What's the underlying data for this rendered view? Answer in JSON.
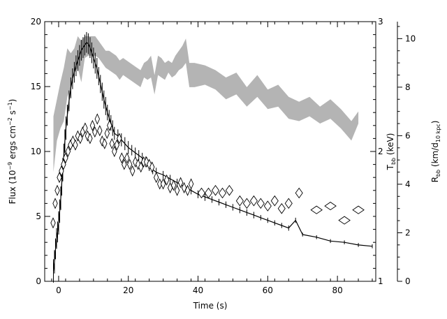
{
  "chart_data": {
    "type": "line",
    "title": "",
    "xlabel": "Time (s)",
    "ylabel": "Flux (10⁻⁹ ergs cm⁻² s⁻¹)",
    "ylabel_parts": {
      "base": "Flux (10",
      "exp1": "−9",
      "mid1": " ergs cm",
      "exp2": "−2",
      "mid2": " s",
      "exp3": "−1",
      "end": ")"
    },
    "xlim": [
      -4,
      91
    ],
    "ylim": [
      0,
      20
    ],
    "x_ticks": [
      0,
      20,
      40,
      60,
      80
    ],
    "y_ticks": [
      0,
      5,
      10,
      15,
      20
    ],
    "secondary_axes": [
      {
        "label": "T_bb (keV)",
        "label_parts": {
          "base": "T",
          "sub": "bb",
          "end": " (keV)"
        },
        "ticks": [
          1,
          2,
          3
        ],
        "range": [
          1,
          3
        ]
      },
      {
        "label": "R_bb (km/d_10 kpc)",
        "label_parts": {
          "base": "R",
          "sub": "bb",
          "mid": " (km/d",
          "sub2": "10 kpc",
          "end": ")"
        },
        "ticks": [
          0,
          2,
          4,
          6,
          8,
          10
        ],
        "range": [
          0,
          10.7
        ]
      }
    ],
    "grid": false,
    "series": [
      {
        "style": "line-with-error-bars",
        "axis": "flux",
        "x": [
          -1.5,
          -1.2,
          -0.9,
          -0.6,
          -0.3,
          0,
          0.3,
          0.6,
          0.9,
          1.2,
          1.5,
          1.8,
          2.1,
          2.5,
          3,
          3.5,
          4,
          4.5,
          5,
          5.5,
          6,
          6.5,
          7,
          7.5,
          8,
          8.5,
          9,
          9.5,
          10,
          10.5,
          11,
          11.5,
          12,
          12.5,
          13,
          13.5,
          14,
          14.5,
          15,
          15.5,
          16,
          17,
          18,
          19,
          20,
          21,
          22,
          23,
          24,
          25,
          26,
          27,
          28,
          30,
          32,
          34,
          36,
          38,
          40,
          42,
          44,
          46,
          48,
          50,
          52,
          54,
          56,
          58,
          60,
          62,
          64,
          66,
          68,
          70,
          74,
          78,
          82,
          86,
          90
        ],
        "y": [
          0.8,
          1.5,
          2.5,
          3.3,
          3.8,
          4.5,
          5.4,
          6.4,
          7.5,
          8.6,
          9.7,
          10.8,
          11.8,
          12.8,
          13.9,
          14.9,
          15.6,
          16.1,
          16.6,
          17.0,
          17.4,
          17.8,
          18.0,
          18.2,
          18.4,
          18.3,
          18.0,
          17.6,
          17.2,
          16.8,
          16.4,
          15.8,
          15.2,
          14.6,
          14.0,
          13.5,
          13.0,
          12.6,
          12.2,
          11.8,
          11.4,
          11.2,
          10.9,
          10.6,
          10.3,
          10.1,
          9.9,
          9.7,
          9.5,
          9.2,
          8.9,
          8.6,
          8.4,
          8.2,
          7.9,
          7.6,
          7.3,
          7.0,
          6.7,
          6.5,
          6.3,
          6.1,
          5.9,
          5.7,
          5.5,
          5.3,
          5.1,
          4.9,
          4.7,
          4.5,
          4.3,
          4.1,
          4.7,
          3.6,
          3.4,
          3.1,
          3.0,
          2.8,
          2.7
        ],
        "y_err": [
          0.9,
          0.9,
          0.8,
          0.8,
          0.8,
          0.9,
          0.9,
          0.9,
          0.9,
          0.9,
          0.9,
          0.9,
          0.9,
          0.8,
          0.8,
          0.8,
          0.8,
          0.8,
          0.8,
          0.8,
          0.8,
          0.8,
          0.8,
          0.8,
          0.8,
          0.8,
          0.8,
          0.8,
          0.8,
          0.8,
          0.8,
          0.7,
          0.7,
          0.7,
          0.7,
          0.7,
          0.6,
          0.6,
          0.6,
          0.6,
          0.5,
          0.5,
          0.5,
          0.5,
          0.5,
          0.4,
          0.4,
          0.4,
          0.4,
          0.4,
          0.4,
          0.35,
          0.35,
          0.3,
          0.3,
          0.3,
          0.3,
          0.3,
          0.3,
          0.3,
          0.25,
          0.25,
          0.25,
          0.25,
          0.25,
          0.25,
          0.25,
          0.2,
          0.2,
          0.2,
          0.2,
          0.2,
          0.2,
          0.15,
          0.15,
          0.15,
          0.15,
          0.15,
          0.15
        ]
      },
      {
        "style": "shaded-band",
        "axis": "R_bb",
        "color": "#b4b4b4",
        "x": [
          -1.5,
          -0.5,
          0.5,
          1.5,
          2.5,
          3.5,
          4.5,
          5.5,
          6.5,
          7.5,
          8.5,
          9.5,
          10.5,
          11.5,
          12.5,
          13.5,
          14.5,
          15.5,
          16.5,
          17.5,
          18.5,
          19.5,
          20.5,
          21.5,
          22.5,
          23.5,
          24.5,
          25.5,
          26.5,
          27.5,
          28.5,
          29.5,
          30.5,
          31.5,
          32.5,
          33.5,
          34.5,
          35.5,
          36.5,
          37.5,
          39,
          42,
          45,
          48,
          51,
          54,
          57,
          60,
          63,
          66,
          69,
          72,
          75,
          78,
          81,
          84,
          86
        ],
        "low": [
          4.5,
          5.8,
          6.3,
          6.6,
          7.6,
          8.0,
          8.6,
          8.8,
          8.2,
          9.2,
          9.3,
          9.3,
          9.3,
          9.2,
          9.0,
          8.8,
          8.7,
          8.6,
          8.5,
          8.3,
          8.5,
          8.4,
          8.3,
          8.2,
          8.1,
          8.0,
          8.4,
          8.3,
          8.4,
          7.7,
          8.5,
          8.4,
          8.3,
          8.6,
          8.4,
          8.5,
          8.7,
          8.8,
          9.0,
          8.0,
          8.0,
          8.1,
          7.9,
          7.5,
          7.7,
          7.2,
          7.6,
          7.1,
          7.2,
          6.7,
          6.6,
          6.8,
          6.5,
          6.7,
          6.3,
          5.8,
          6.5
        ],
        "high": [
          6.8,
          7.5,
          8.2,
          8.8,
          9.6,
          9.4,
          9.6,
          10.1,
          9.9,
          10.1,
          10.1,
          10.1,
          10.1,
          9.9,
          9.7,
          9.5,
          9.5,
          9.4,
          9.3,
          9.1,
          9.2,
          9.1,
          9.0,
          8.9,
          8.8,
          8.7,
          9.0,
          9.1,
          9.3,
          8.5,
          9.3,
          9.2,
          9.0,
          9.1,
          9.0,
          9.3,
          9.5,
          9.7,
          10.0,
          9.0,
          9.0,
          8.9,
          8.7,
          8.4,
          8.6,
          8.0,
          8.5,
          7.9,
          8.1,
          7.6,
          7.4,
          7.6,
          7.2,
          7.5,
          7.1,
          6.6,
          7.0
        ]
      },
      {
        "style": "open-diamonds",
        "axis": "T_bb",
        "x": [
          -1.6,
          -1.0,
          -0.4,
          0.2,
          0.8,
          1.4,
          2.0,
          2.7,
          3.4,
          4.1,
          4.8,
          5.5,
          6.2,
          6.9,
          7.6,
          8.3,
          9.0,
          9.7,
          10.4,
          11.1,
          11.8,
          12.5,
          13.2,
          13.9,
          14.6,
          15.3,
          16.0,
          16.7,
          17.4,
          18.1,
          18.8,
          19.6,
          20.4,
          21.2,
          22.0,
          22.8,
          23.6,
          24.4,
          25.2,
          26.0,
          26.8,
          28.0,
          29.0,
          30.0,
          31.0,
          32.0,
          33.0,
          34.0,
          35.0,
          36.0,
          37.0,
          38.0,
          41.0,
          43.0,
          45.0,
          47.0,
          49.0,
          52.0,
          54.0,
          56.0,
          58.0,
          60.0,
          62.0,
          64.0,
          66.0,
          69.0,
          74.0,
          78.0,
          82.0,
          86.0
        ],
        "y": [
          1.45,
          1.6,
          1.7,
          1.8,
          1.85,
          1.9,
          1.95,
          2.0,
          2.05,
          2.08,
          2.05,
          2.12,
          2.1,
          2.15,
          2.18,
          2.12,
          2.1,
          2.2,
          2.15,
          2.25,
          2.16,
          2.08,
          2.06,
          2.14,
          2.2,
          2.06,
          2.0,
          2.05,
          2.1,
          1.95,
          1.9,
          1.95,
          1.9,
          1.85,
          1.92,
          1.9,
          1.88,
          1.92,
          1.92,
          1.9,
          1.88,
          1.8,
          1.75,
          1.75,
          1.78,
          1.72,
          1.74,
          1.7,
          1.76,
          1.72,
          1.7,
          1.75,
          1.68,
          1.68,
          1.7,
          1.68,
          1.7,
          1.62,
          1.6,
          1.62,
          1.6,
          1.58,
          1.62,
          1.56,
          1.6,
          1.68,
          1.55,
          1.58,
          1.47,
          1.55
        ]
      }
    ]
  }
}
